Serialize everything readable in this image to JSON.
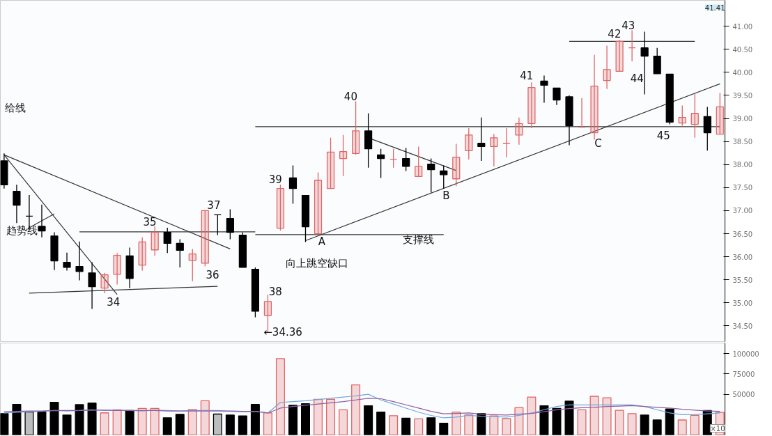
{
  "chart_data": [
    {
      "type": "candlestick",
      "categories": [
        null,
        null,
        null,
        null,
        null,
        null,
        null,
        null,
        null,
        null,
        null,
        null,
        null,
        null,
        null,
        null,
        null,
        null,
        null,
        null,
        null,
        null,
        null,
        null,
        null,
        null,
        null,
        null,
        null,
        null,
        null,
        null,
        null,
        null,
        null,
        null,
        null,
        null,
        null,
        null,
        null,
        null,
        null,
        null,
        null,
        null,
        null,
        null,
        null,
        null,
        null,
        null,
        null,
        null,
        null,
        null,
        null,
        null
      ],
      "ohlc": [
        [
          38.08,
          38.24,
          37.48,
          37.56
        ],
        [
          37.42,
          37.56,
          36.73,
          37.12
        ],
        [
          36.88,
          37.34,
          36.6,
          36.88
        ],
        [
          36.66,
          37.13,
          36.42,
          36.56
        ],
        [
          36.45,
          36.53,
          35.71,
          35.91
        ],
        [
          35.88,
          36.09,
          35.7,
          35.77
        ],
        [
          35.79,
          36.33,
          35.49,
          35.68
        ],
        [
          35.65,
          35.88,
          34.87,
          35.35
        ],
        [
          35.32,
          35.65,
          35.21,
          35.61
        ],
        [
          35.62,
          36.08,
          35.4,
          36.03
        ],
        [
          36.02,
          36.2,
          35.32,
          35.53
        ],
        [
          35.82,
          36.42,
          35.7,
          36.32
        ],
        [
          36.15,
          36.66,
          36.02,
          36.53
        ],
        [
          36.53,
          36.63,
          36.08,
          36.29
        ],
        [
          36.29,
          36.38,
          35.77,
          36.14
        ],
        [
          35.92,
          36.17,
          35.47,
          36.06
        ],
        [
          35.86,
          37.0,
          35.79,
          37.0
        ],
        [
          36.91,
          36.91,
          36.47,
          36.91
        ],
        [
          36.83,
          37.03,
          36.38,
          36.53
        ],
        [
          36.47,
          36.53,
          35.77,
          35.77
        ],
        [
          35.73,
          35.77,
          34.69,
          34.82
        ],
        [
          34.73,
          35.18,
          34.36,
          35.03
        ],
        [
          36.62,
          37.56,
          36.57,
          37.48
        ],
        [
          37.71,
          37.98,
          37.15,
          37.48
        ],
        [
          37.33,
          37.33,
          36.32,
          36.65
        ],
        [
          36.5,
          37.83,
          36.5,
          37.66
        ],
        [
          37.48,
          38.58,
          37.48,
          38.27
        ],
        [
          38.13,
          38.64,
          37.75,
          38.28
        ],
        [
          38.24,
          39.37,
          38.21,
          38.73
        ],
        [
          38.73,
          39.11,
          37.93,
          38.34
        ],
        [
          38.21,
          38.34,
          37.71,
          38.13
        ],
        [
          38.11,
          38.34,
          37.93,
          38.11
        ],
        [
          38.13,
          38.36,
          37.86,
          37.96
        ],
        [
          37.74,
          38.39,
          37.74,
          37.96
        ],
        [
          38.01,
          38.13,
          37.39,
          37.89
        ],
        [
          37.86,
          37.98,
          37.48,
          37.78
        ],
        [
          37.69,
          38.45,
          37.53,
          38.16
        ],
        [
          38.3,
          38.79,
          38.11,
          38.64
        ],
        [
          38.46,
          39.02,
          38.08,
          38.39
        ],
        [
          38.39,
          38.66,
          37.96,
          38.58
        ],
        [
          38.46,
          38.79,
          38.16,
          38.46
        ],
        [
          38.64,
          39.02,
          38.43,
          38.89
        ],
        [
          38.89,
          39.78,
          38.79,
          39.67
        ],
        [
          39.81,
          39.93,
          39.34,
          39.72
        ],
        [
          39.66,
          39.66,
          39.29,
          39.4
        ],
        [
          39.47,
          39.5,
          38.42,
          38.84
        ],
        [
          38.81,
          39.44,
          38.81,
          38.81
        ],
        [
          38.69,
          40.38,
          38.54,
          39.7
        ],
        [
          39.82,
          40.58,
          39.64,
          40.06
        ],
        [
          40.02,
          40.7,
          40.02,
          40.67
        ],
        [
          40.53,
          40.91,
          40.24,
          40.53
        ],
        [
          40.53,
          40.88,
          39.52,
          40.35
        ],
        [
          40.35,
          40.53,
          39.97,
          39.97
        ],
        [
          39.96,
          39.96,
          38.87,
          38.92
        ],
        [
          38.9,
          39.28,
          38.84,
          39.02
        ],
        [
          38.87,
          39.55,
          38.58,
          39.11
        ],
        [
          39.04,
          39.25,
          38.3,
          38.69
        ],
        [
          38.66,
          39.55,
          38.66,
          39.25
        ]
      ],
      "colors": [
        "#000000",
        "#000000",
        "#000000",
        "#000000",
        "#000000",
        "#000000",
        "#000000",
        "#000000",
        "#e06666",
        "#e06666",
        "#000000",
        "#e06666",
        "#e06666",
        "#000000",
        "#000000",
        "#e06666",
        "#e06666",
        "#000000",
        "#000000",
        "#000000",
        "#000000",
        "#e06666",
        "#e06666",
        "#000000",
        "#000000",
        "#e06666",
        "#e06666",
        "#e06666",
        "#e06666",
        "#000000",
        "#000000",
        "#e06666",
        "#000000",
        "#e06666",
        "#000000",
        "#000000",
        "#e06666",
        "#e06666",
        "#000000",
        "#e06666",
        "#e06666",
        "#e06666",
        "#e06666",
        "#000000",
        "#000000",
        "#000000",
        "#e06666",
        "#e06666",
        "#e06666",
        "#e06666",
        "#e06666",
        "#000000",
        "#000000",
        "#000000",
        "#e06666",
        "#e06666",
        "#000000",
        "#e06666"
      ],
      "series": [
        {
          "type": "line",
          "color": "#333333",
          "values": [
            38.21,
            null,
            null,
            null,
            null,
            null,
            null,
            null,
            null,
            35.18,
            null,
            null,
            null,
            null,
            null,
            null,
            null,
            null,
            null,
            null,
            null,
            null,
            null,
            null,
            null,
            null,
            null,
            null,
            null,
            null,
            null,
            null,
            null,
            null,
            null,
            null,
            null,
            null,
            null,
            null,
            null,
            null,
            null,
            null,
            null,
            null,
            null,
            null,
            null,
            null,
            null,
            null,
            null,
            null,
            null,
            null,
            null,
            null
          ]
        },
        {
          "type": "line",
          "color": "#333333",
          "values": [
            38.21,
            null,
            null,
            null,
            null,
            null,
            null,
            null,
            null,
            null,
            null,
            null,
            null,
            null,
            null,
            null,
            null,
            null,
            36.17,
            null,
            null,
            null,
            null,
            null,
            null,
            null,
            null,
            null,
            null,
            null,
            null,
            null,
            null,
            null,
            null,
            null,
            null,
            null,
            null,
            null,
            null,
            null,
            null,
            null,
            null,
            null,
            null,
            null,
            null,
            null,
            null,
            null,
            null,
            null,
            null,
            null,
            null,
            null
          ]
        },
        {
          "type": "line",
          "color": "#333333",
          "values": [
            null,
            null,
            36.63,
            null,
            36.93,
            null,
            null,
            null,
            null,
            null,
            null,
            null,
            null,
            null,
            null,
            null,
            null,
            null,
            null,
            null,
            null,
            null,
            null,
            null,
            null,
            null,
            null,
            null,
            null,
            null,
            null,
            null,
            null,
            null,
            null,
            null,
            null,
            null,
            null,
            null,
            null,
            null,
            null,
            null,
            null,
            null,
            null,
            null,
            null,
            null,
            null,
            null,
            null,
            null,
            null,
            null,
            null,
            null
          ]
        },
        {
          "type": "line",
          "color": "#333333",
          "values": [
            null,
            null,
            35.21,
            null,
            null,
            null,
            null,
            null,
            null,
            null,
            null,
            null,
            null,
            null,
            null,
            null,
            null,
            35.36,
            null,
            null,
            null,
            null,
            null,
            null,
            null,
            null,
            null,
            null,
            null,
            null,
            null,
            null,
            null,
            null,
            null,
            null,
            null,
            null,
            null,
            null,
            null,
            null,
            null,
            null,
            null,
            null,
            null,
            null,
            null,
            null,
            null,
            null,
            null,
            null,
            null,
            null,
            null,
            null
          ]
        },
        {
          "type": "line",
          "color": "#333333",
          "values": [
            null,
            null,
            null,
            null,
            null,
            null,
            36.54,
            null,
            null,
            null,
            null,
            null,
            null,
            null,
            null,
            null,
            null,
            null,
            null,
            null,
            36.54,
            null,
            null,
            null,
            null,
            null,
            null,
            null,
            null,
            null,
            null,
            null,
            null,
            null,
            null,
            null,
            null,
            null,
            null,
            null,
            null,
            null,
            null,
            null,
            null,
            null,
            null,
            null,
            null,
            null,
            null,
            null,
            null,
            null,
            null,
            null,
            null,
            null
          ]
        },
        {
          "type": "line",
          "color": "#333333",
          "values": [
            null,
            null,
            null,
            null,
            null,
            null,
            null,
            null,
            null,
            null,
            null,
            null,
            null,
            null,
            null,
            null,
            null,
            null,
            null,
            null,
            36.48,
            null,
            null,
            null,
            null,
            null,
            null,
            null,
            null,
            null,
            null,
            null,
            null,
            null,
            null,
            36.48,
            null,
            null,
            null,
            null,
            null,
            null,
            null,
            null,
            null,
            null,
            null,
            null,
            null,
            null,
            null,
            null,
            null,
            null,
            null,
            null,
            null,
            null
          ]
        },
        {
          "type": "line",
          "color": "#333333",
          "values": [
            null,
            null,
            null,
            null,
            null,
            null,
            null,
            null,
            null,
            null,
            null,
            null,
            null,
            null,
            null,
            null,
            null,
            null,
            null,
            null,
            38.82,
            null,
            null,
            null,
            null,
            null,
            null,
            null,
            null,
            null,
            null,
            null,
            null,
            null,
            null,
            null,
            null,
            null,
            null,
            null,
            null,
            null,
            null,
            null,
            null,
            null,
            null,
            null,
            null,
            null,
            null,
            null,
            null,
            null,
            null,
            null,
            null,
            38.82
          ]
        },
        {
          "type": "line",
          "color": "#333333",
          "values": [
            null,
            null,
            null,
            null,
            null,
            null,
            null,
            null,
            null,
            null,
            null,
            null,
            null,
            null,
            null,
            null,
            null,
            null,
            null,
            null,
            null,
            null,
            null,
            null,
            null,
            null,
            null,
            null,
            null,
            null,
            null,
            null,
            null,
            null,
            null,
            null,
            null,
            null,
            null,
            null,
            null,
            null,
            null,
            null,
            null,
            40.67,
            null,
            null,
            null,
            null,
            null,
            null,
            null,
            null,
            null,
            40.67,
            null,
            null
          ]
        },
        {
          "type": "line",
          "color": "#333333",
          "values": [
            null,
            null,
            null,
            null,
            null,
            null,
            null,
            null,
            null,
            null,
            null,
            null,
            null,
            null,
            null,
            null,
            null,
            null,
            null,
            null,
            null,
            null,
            null,
            null,
            36.35,
            null,
            null,
            null,
            null,
            null,
            null,
            null,
            null,
            null,
            null,
            null,
            null,
            null,
            null,
            null,
            null,
            null,
            null,
            null,
            null,
            null,
            null,
            null,
            null,
            null,
            null,
            null,
            null,
            null,
            null,
            null,
            null,
            39.75
          ]
        },
        {
          "type": "line",
          "color": "#333333",
          "values": [
            null,
            null,
            null,
            null,
            null,
            null,
            null,
            null,
            null,
            null,
            null,
            null,
            null,
            null,
            null,
            null,
            null,
            null,
            null,
            null,
            null,
            null,
            null,
            null,
            null,
            null,
            null,
            null,
            null,
            38.58,
            null,
            null,
            null,
            null,
            null,
            null,
            37.87,
            null,
            null,
            null,
            null,
            null,
            null,
            null,
            null,
            null,
            null,
            null,
            null,
            null,
            null,
            null,
            null,
            null,
            null,
            null,
            null,
            null
          ]
        }
      ],
      "ylim": [
        34.16,
        41.56
      ],
      "yticks": [
        {
          "value": 34.5,
          "label": "34.50"
        },
        {
          "value": 35,
          "label": "35.00"
        },
        {
          "value": 35.5,
          "label": "35.50"
        },
        {
          "value": 36,
          "label": "36.00"
        },
        {
          "value": 36.5,
          "label": "36.50"
        },
        {
          "value": 37,
          "label": "37.00"
        },
        {
          "value": 37.5,
          "label": "37.50"
        },
        {
          "value": 38,
          "label": "38.00"
        },
        {
          "value": 38.5,
          "label": "38.50"
        },
        {
          "value": 39,
          "label": "39.00"
        },
        {
          "value": 39.5,
          "label": "39.50"
        },
        {
          "value": 40,
          "label": "40.00"
        },
        {
          "value": 40.5,
          "label": "40.50"
        },
        {
          "value": 41,
          "label": "41.00"
        }
      ],
      "tick_labels": "y",
      "annotations": [
        "34",
        "35",
        "36",
        "37",
        "38",
        "39",
        "40",
        "41",
        "42",
        "43",
        "44",
        "45",
        "A",
        "B",
        "C",
        "支撑线",
        "向上跳空缺口",
        "给线",
        "趋势线",
        "←34.36",
        "41.41"
      ]
    },
    {
      "type": "bar",
      "categories": [
        null,
        null,
        null,
        null,
        null,
        null,
        null,
        null,
        null,
        null,
        null,
        null,
        null,
        null,
        null,
        null,
        null,
        null,
        null,
        null,
        null,
        null,
        null,
        null,
        null,
        null,
        null,
        null,
        null,
        null,
        null,
        null,
        null,
        null,
        null,
        null,
        null,
        null,
        null,
        null,
        null,
        null,
        null,
        null,
        null,
        null,
        null,
        null,
        null,
        null,
        null,
        null,
        null,
        null,
        null,
        null,
        null,
        null
      ],
      "values": [
        26300,
        37500,
        28100,
        28100,
        40100,
        24400,
        37300,
        39200,
        27200,
        30900,
        30000,
        32700,
        32700,
        21100,
        25400,
        31300,
        42000,
        25700,
        24400,
        23500,
        37500,
        27200,
        93900,
        36400,
        38300,
        43800,
        43800,
        30900,
        61600,
        35900,
        28100,
        23700,
        20700,
        19800,
        21100,
        14500,
        28100,
        24700,
        26300,
        23500,
        20100,
        33700,
        46600,
        35900,
        32700,
        41500,
        30900,
        47500,
        45700,
        30300,
        26300,
        24400,
        18400,
        31900,
        18400,
        24100,
        30000,
        27700
      ],
      "colors": [
        "#000000",
        "#000000",
        "#000000",
        "#000000",
        "#000000",
        "#000000",
        "#000000",
        "#000000",
        "#e06666",
        "#e06666",
        "#000000",
        "#e06666",
        "#e06666",
        "#000000",
        "#000000",
        "#e06666",
        "#e06666",
        "#000000",
        "#000000",
        "#000000",
        "#000000",
        "#e06666",
        "#e06666",
        "#000000",
        "#000000",
        "#e06666",
        "#e06666",
        "#e06666",
        "#e06666",
        "#000000",
        "#000000",
        "#e06666",
        "#000000",
        "#e06666",
        "#000000",
        "#000000",
        "#e06666",
        "#e06666",
        "#000000",
        "#e06666",
        "#e06666",
        "#e06666",
        "#e06666",
        "#000000",
        "#000000",
        "#000000",
        "#e06666",
        "#e06666",
        "#e06666",
        "#e06666",
        "#e06666",
        "#000000",
        "#000000",
        "#000000",
        "#e06666",
        "#e06666",
        "#000000",
        "#e06666"
      ],
      "series": [
        {
          "type": "line",
          "color": "#6fa8dc",
          "values": [
            27000,
            28000,
            28500,
            29000,
            30000,
            29500,
            30000,
            31000,
            30000,
            30500,
            30000,
            29500,
            30500,
            30000,
            29500,
            30000,
            30000,
            30000,
            29000,
            28500,
            29000,
            27000,
            40000,
            41000,
            42000,
            43500,
            45000,
            46500,
            48000,
            50000,
            43000,
            38000,
            33000,
            28000,
            24000,
            21000,
            22000,
            24000,
            23000,
            22500,
            22000,
            24000,
            27000,
            31000,
            35000,
            37000,
            37000,
            37000,
            37000,
            37000,
            37000,
            35000,
            31000,
            27000,
            25000,
            25000,
            26000,
            27000
          ]
        },
        {
          "type": "line",
          "color": "#8e5ea2",
          "values": [
            28500,
            29000,
            29500,
            29500,
            30000,
            30000,
            30000,
            30500,
            30500,
            30000,
            30000,
            30000,
            30000,
            29500,
            29500,
            29500,
            29500,
            29500,
            29500,
            29000,
            29000,
            27000,
            33000,
            35000,
            36500,
            38000,
            39500,
            41000,
            43000,
            45000,
            44500,
            41000,
            37000,
            33000,
            29000,
            26000,
            26500,
            27000,
            25500,
            25000,
            24500,
            25500,
            26500,
            28500,
            31000,
            32500,
            33500,
            34000,
            35000,
            35500,
            36000,
            35000,
            34000,
            33000,
            31500,
            30500,
            29500,
            29000
          ]
        }
      ],
      "ylim": [
        0,
        113000
      ],
      "yticks": [
        50000,
        75000,
        100000
      ],
      "tick_labels": "y",
      "annotations": [
        "×10"
      ]
    }
  ]
}
